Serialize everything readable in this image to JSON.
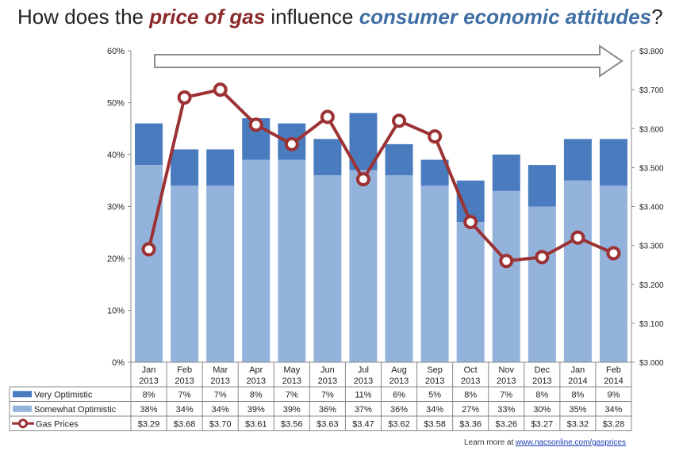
{
  "title": {
    "part1": "How does the ",
    "emph1": "price of gas",
    "part2": " influence ",
    "emph2": "consumer economic attitudes",
    "part3": "?"
  },
  "colors": {
    "very_optimistic": "#4a7bbf",
    "somewhat_optimistic": "#94b3dc",
    "gas_line": "#9c3234",
    "title_emph1": "#8b2a2a",
    "title_emph2": "#3f6ea5",
    "arrow": "#8c8c8c"
  },
  "chart_data": {
    "type": "bar",
    "stacked": true,
    "categories": [
      [
        "Jan",
        "2013"
      ],
      [
        "Feb",
        "2013"
      ],
      [
        "Mar",
        "2013"
      ],
      [
        "Apr",
        "2013"
      ],
      [
        "May",
        "2013"
      ],
      [
        "Jun",
        "2013"
      ],
      [
        "Jul",
        "2013"
      ],
      [
        "Aug",
        "2013"
      ],
      [
        "Sep",
        "2013"
      ],
      [
        "Oct",
        "2013"
      ],
      [
        "Nov",
        "2013"
      ],
      [
        "Dec",
        "2013"
      ],
      [
        "Jan",
        "2014"
      ],
      [
        "Feb",
        "2014"
      ]
    ],
    "series": [
      {
        "name": "Very Optimistic",
        "kind": "bar",
        "axis": "left",
        "values": [
          8,
          7,
          7,
          8,
          7,
          7,
          11,
          6,
          5,
          8,
          7,
          8,
          8,
          9
        ],
        "labels": [
          "8%",
          "7%",
          "7%",
          "8%",
          "7%",
          "7%",
          "11%",
          "6%",
          "5%",
          "8%",
          "7%",
          "8%",
          "8%",
          "9%"
        ]
      },
      {
        "name": "Somewhat Optimistic",
        "kind": "bar",
        "axis": "left",
        "values": [
          38,
          34,
          34,
          39,
          39,
          36,
          37,
          36,
          34,
          27,
          33,
          30,
          35,
          34
        ],
        "labels": [
          "38%",
          "34%",
          "34%",
          "39%",
          "39%",
          "36%",
          "37%",
          "36%",
          "34%",
          "27%",
          "33%",
          "30%",
          "35%",
          "34%"
        ]
      },
      {
        "name": "Gas Prices",
        "kind": "line",
        "axis": "right",
        "values": [
          3.29,
          3.68,
          3.7,
          3.61,
          3.56,
          3.63,
          3.47,
          3.62,
          3.58,
          3.36,
          3.26,
          3.27,
          3.32,
          3.28
        ],
        "labels": [
          "$3.29",
          "$3.68",
          "$3.70",
          "$3.61",
          "$3.56",
          "$3.63",
          "$3.47",
          "$3.62",
          "$3.58",
          "$3.36",
          "$3.26",
          "$3.27",
          "$3.32",
          "$3.28"
        ]
      }
    ],
    "y_left": {
      "range": [
        0,
        60
      ],
      "ticks": [
        "0%",
        "10%",
        "20%",
        "30%",
        "40%",
        "50%",
        "60%"
      ]
    },
    "y_right": {
      "range": [
        3.0,
        3.8
      ],
      "ticks": [
        "$3.000",
        "$3.100",
        "$3.200",
        "$3.300",
        "$3.400",
        "$3.500",
        "$3.600",
        "$3.700",
        "$3.800"
      ]
    },
    "data_table": true,
    "grid": false
  },
  "footer": {
    "prefix": "Learn more at ",
    "link": "www.nacsonline.com/gasprices"
  }
}
